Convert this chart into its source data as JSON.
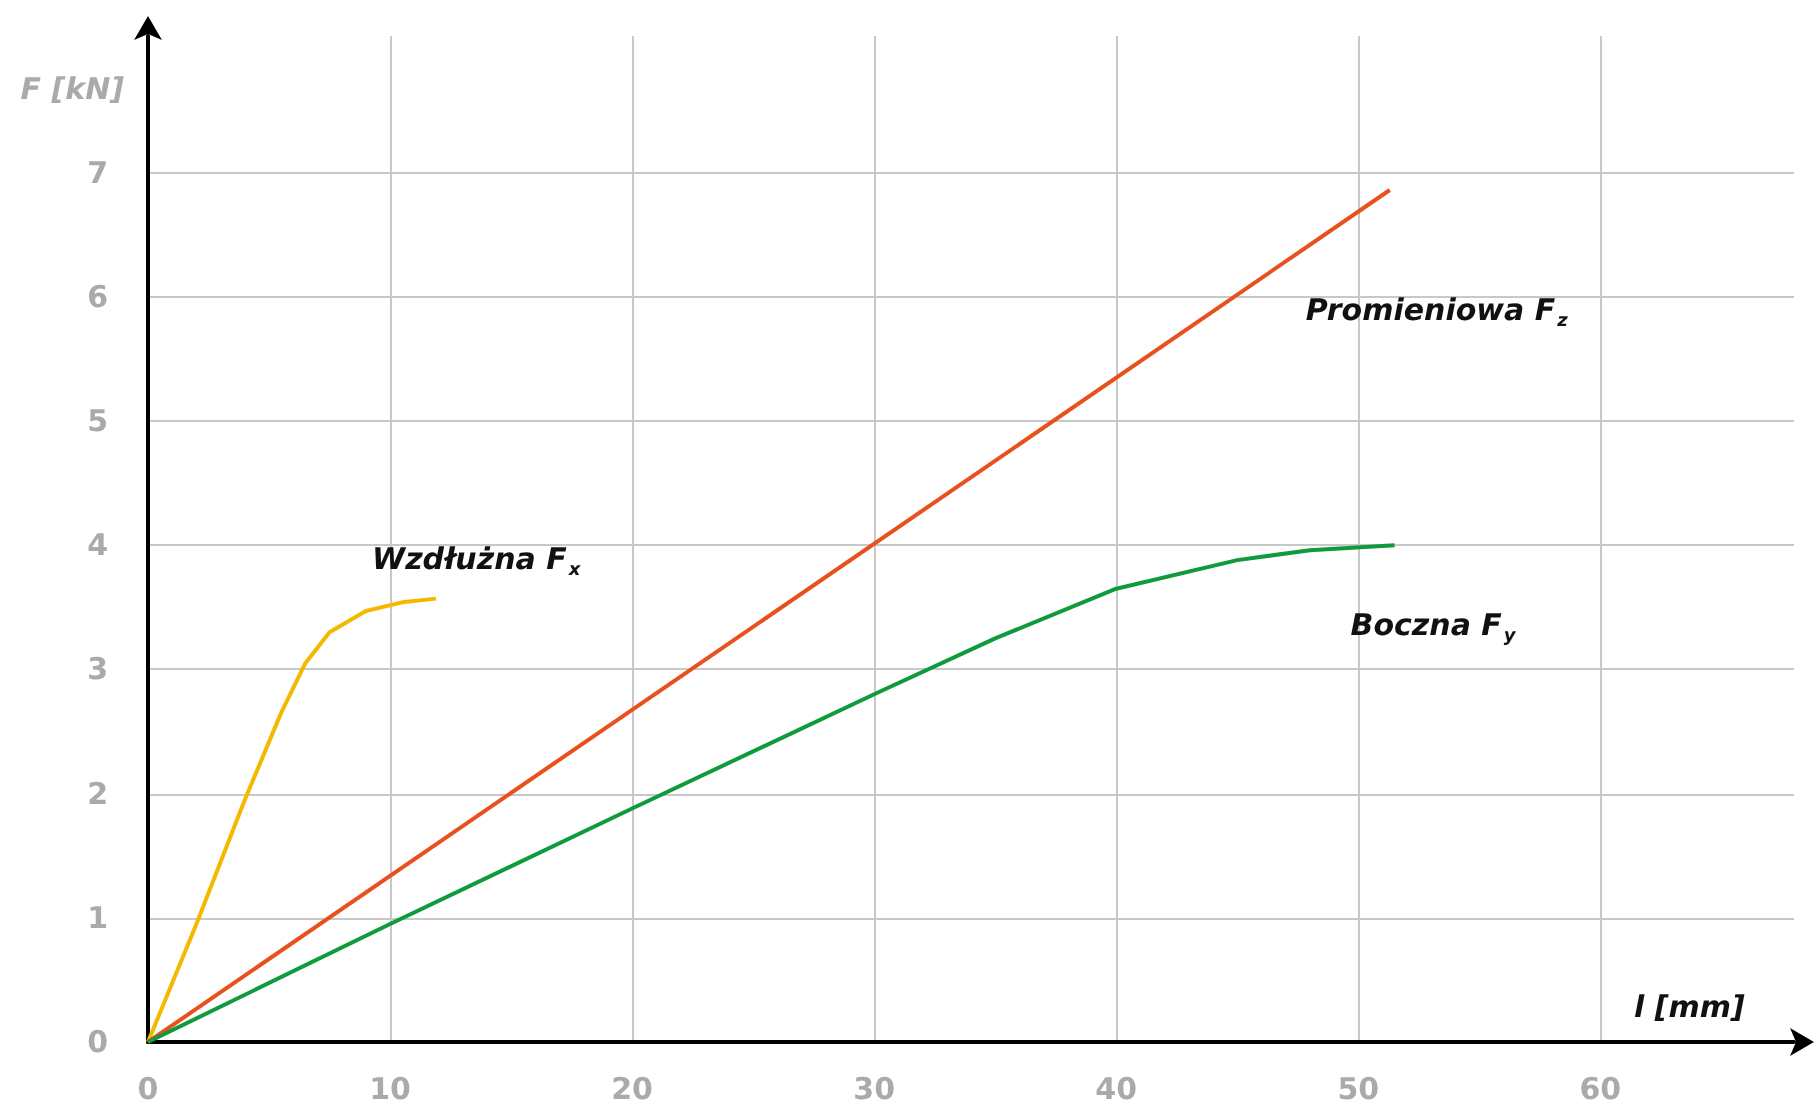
{
  "chart_data": {
    "type": "line",
    "xlabel": "l [mm]",
    "ylabel": "F [kN]",
    "xlim": [
      0,
      68
    ],
    "ylim": [
      0,
      8.1
    ],
    "xticks": [
      0,
      10,
      20,
      30,
      40,
      50,
      60
    ],
    "yticks": [
      0,
      1,
      2,
      3,
      4,
      5,
      6,
      7
    ],
    "grid": true,
    "legend": false,
    "marker": "none",
    "line_style": "solid",
    "series": [
      {
        "name": "Wzdłużna F$_{x}$",
        "color": "#f5b800",
        "x": [
          0,
          2,
          4,
          5.5,
          6.5,
          7.5,
          9,
          10.5,
          11.9
        ],
        "values": [
          0,
          0.95,
          1.95,
          2.65,
          3.05,
          3.3,
          3.47,
          3.54,
          3.57
        ]
      },
      {
        "name": "Promieniowa F$_{z}$",
        "color": "#e8501e",
        "x": [
          0,
          51.3
        ],
        "values": [
          0,
          6.86
        ]
      },
      {
        "name": "Boczna F$_{y}$",
        "color": "#0f9a3c",
        "x": [
          0,
          10,
          20,
          30,
          35,
          40,
          45,
          48,
          51.5
        ],
        "values": [
          0,
          0.95,
          1.88,
          2.8,
          3.25,
          3.65,
          3.88,
          3.96,
          4.0
        ]
      }
    ]
  }
}
